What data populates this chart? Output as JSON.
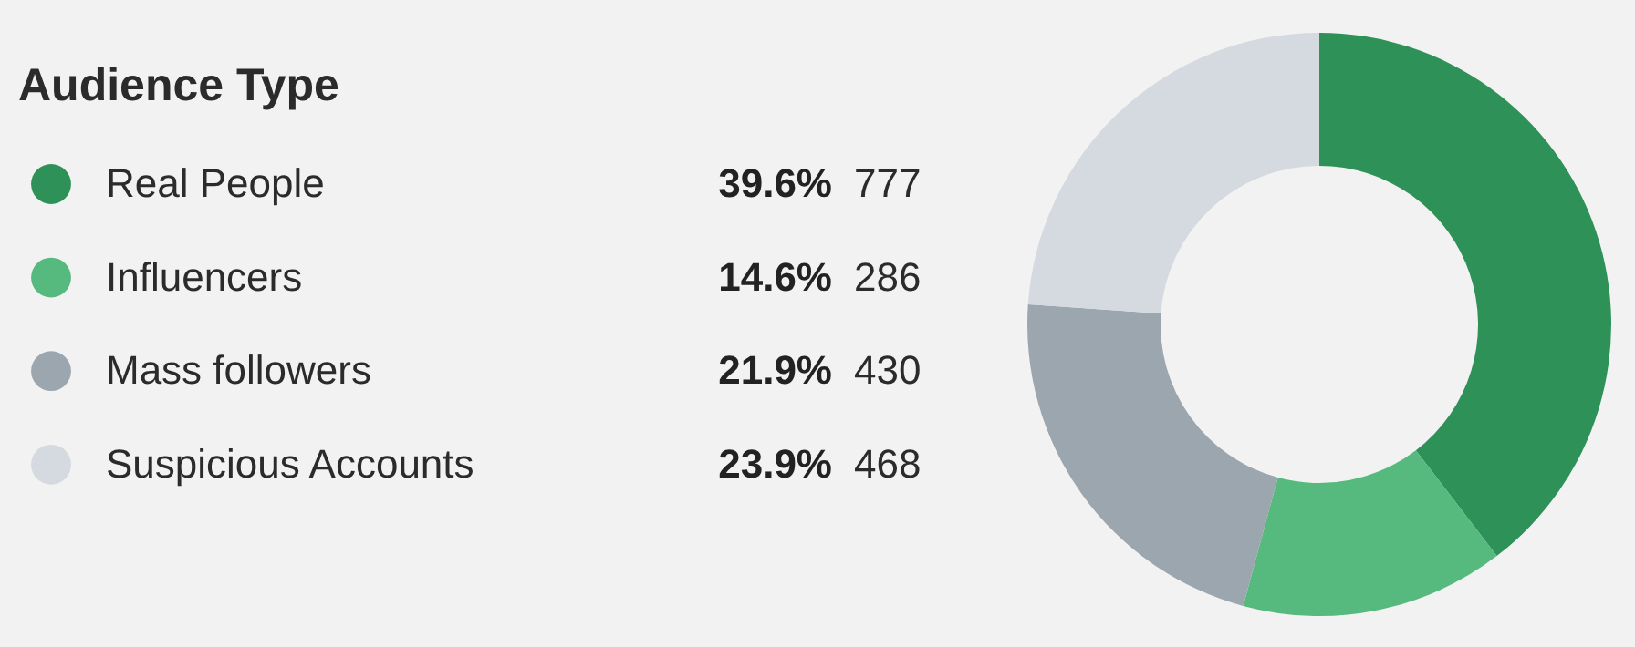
{
  "chart_data": {
    "type": "donut",
    "title": "Audience Type",
    "categories": [
      "Real People",
      "Influencers",
      "Mass followers",
      "Suspicious Accounts"
    ],
    "values": [
      39.6,
      14.6,
      21.9,
      23.9
    ],
    "value_labels": [
      "39.6%",
      "14.6%",
      "21.9%",
      "23.9%"
    ],
    "annotations": [
      "777",
      "286",
      "430",
      "468"
    ],
    "colors": [
      "#2e9157",
      "#56b97d",
      "#9ba6af",
      "#d4dae0"
    ],
    "legend": "left"
  }
}
